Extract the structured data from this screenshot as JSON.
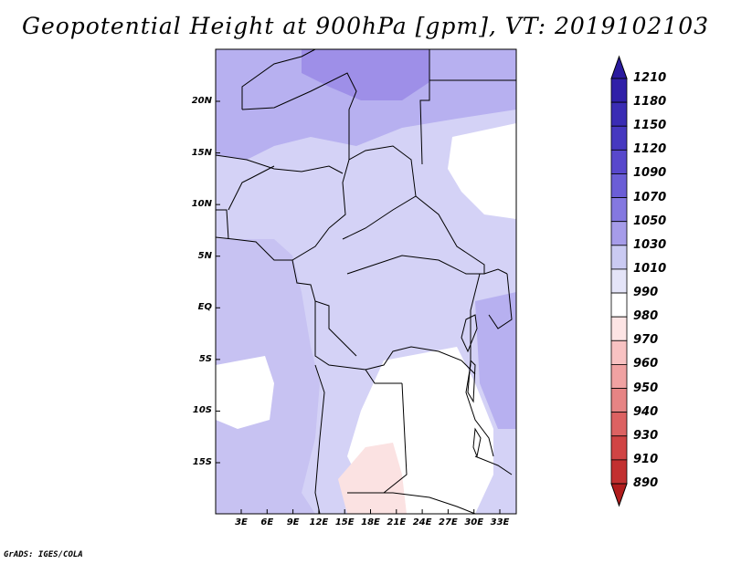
{
  "title": "Geopotential Height at 900hPa [gpm], VT: 2019102103",
  "credit": "GrADS: IGES/COLA",
  "lat_labels": [
    "20N",
    "15N",
    "10N",
    "5N",
    "EQ",
    "5S",
    "10S",
    "15S"
  ],
  "lon_labels": [
    "3E",
    "6E",
    "9E",
    "12E",
    "15E",
    "18E",
    "21E",
    "24E",
    "27E",
    "30E",
    "33E"
  ],
  "colorbar": {
    "labels": [
      "1210",
      "1180",
      "1150",
      "1120",
      "1090",
      "1070",
      "1050",
      "1030",
      "1010",
      "990",
      "980",
      "970",
      "960",
      "950",
      "940",
      "930",
      "910",
      "890"
    ],
    "colors": [
      "#2a1a9e",
      "#3020a8",
      "#3a2cb4",
      "#4638c0",
      "#5848cc",
      "#6b5ed6",
      "#8478e0",
      "#a69ce9",
      "#cacaf2",
      "#e4e4f8",
      "#ffffff",
      "#fde4e4",
      "#f8c2c2",
      "#f0a2a2",
      "#e68484",
      "#dc6262",
      "#d04444",
      "#c23030",
      "#b01c1c"
    ]
  },
  "field_colors": {
    "deep": "#9e8fe8",
    "mid": "#b7b0f0",
    "light": "#d4d2f6",
    "ocean": "#c7c2f2",
    "white": "#ffffff",
    "pink": "#fbe2e2"
  }
}
